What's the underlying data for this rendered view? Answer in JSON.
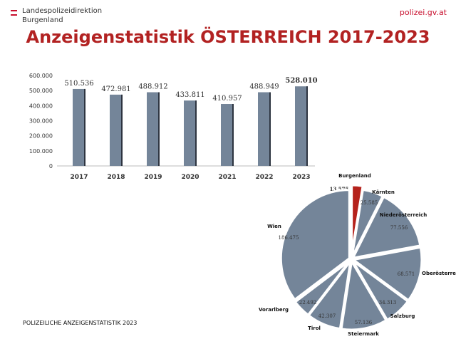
{
  "header": {
    "org_line1": "Landespolizeidirektion",
    "org_line2": "Burgenland",
    "website": "polizei.gv.at"
  },
  "title": "Anzeigenstatistik ÖSTERREICH 2017-2023",
  "footer": "POLIZEILICHE ANZEIGENSTATISTIK  2023",
  "colors": {
    "bar": "#748599",
    "highlight": "#b5221c",
    "title": "#b22222"
  },
  "chart_data": [
    {
      "type": "bar",
      "categories": [
        "2017",
        "2018",
        "2019",
        "2020",
        "2021",
        "2022",
        "2023"
      ],
      "values": [
        510536,
        472981,
        488912,
        433811,
        410957,
        488949,
        528010
      ],
      "data_labels": [
        "510.536",
        "472.981",
        "488.912",
        "433.811",
        "410.957",
        "488.949",
        "528.010"
      ],
      "yticks": [
        "0",
        "100.000",
        "200.000",
        "300.000",
        "400.000",
        "500.000",
        "600.000"
      ],
      "ylim": [
        0,
        600000
      ],
      "grid": false,
      "highlight": "2023"
    },
    {
      "type": "pie",
      "labels": [
        "Burgenland",
        "Kärnten",
        "Niederösterreich",
        "Oberösterreich",
        "Salzburg",
        "Steiermark",
        "Tirol",
        "Vorarlberg",
        "Wien"
      ],
      "values": [
        13575,
        25585,
        77556,
        68571,
        34313,
        57136,
        42307,
        22492,
        186475
      ],
      "data_labels": [
        "13.575",
        "25.585",
        "77.556",
        "68.571",
        "34.313",
        "57.136",
        "42.307",
        "22.492",
        "186.475"
      ],
      "highlight": "Burgenland"
    }
  ]
}
